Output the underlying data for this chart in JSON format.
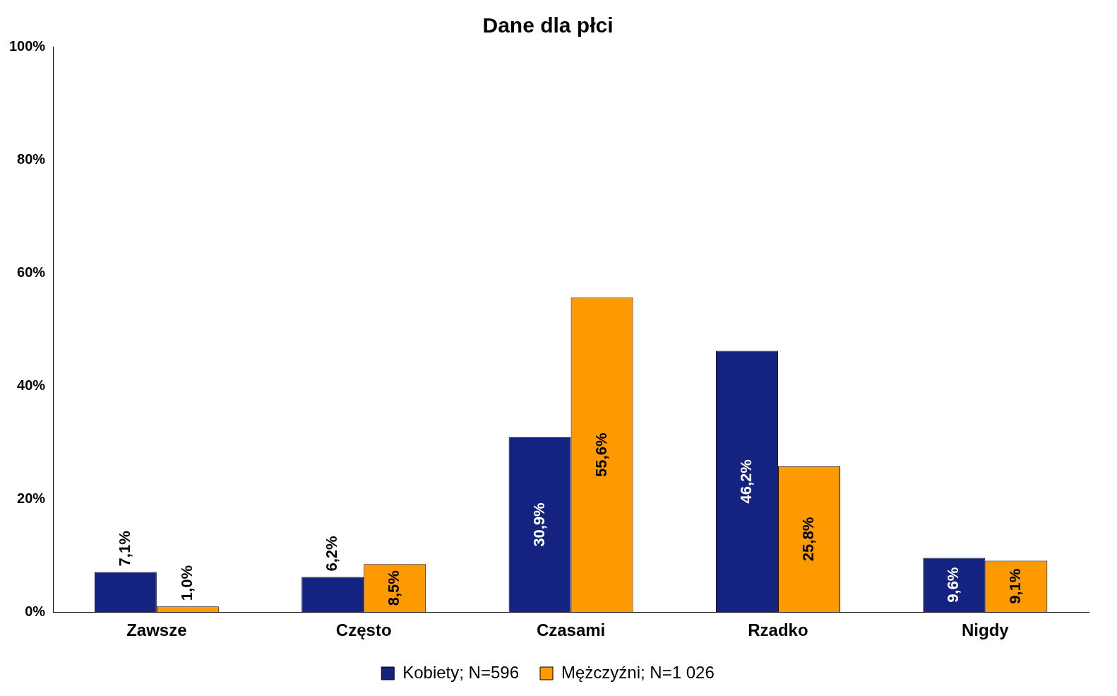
{
  "chart_data": {
    "type": "bar",
    "title": "Dane dla płci",
    "categories": [
      "Zawsze",
      "Często",
      "Czasami",
      "Rzadko",
      "Nigdy"
    ],
    "series": [
      {
        "name": "Kobiety; N=596",
        "color": "#14237f",
        "values": [
          7.1,
          6.2,
          30.9,
          46.2,
          9.6
        ],
        "value_labels": [
          "7,1%",
          "6,2%",
          "30,9%",
          "46,2%",
          "9,6%"
        ]
      },
      {
        "name": "Mężczyźni; N=1 026",
        "color": "#ff9900",
        "values": [
          1.0,
          8.5,
          55.6,
          25.8,
          9.1
        ],
        "value_labels": [
          "1,0%",
          "8,5%",
          "55,6%",
          "25,8%",
          "9,1%"
        ]
      }
    ],
    "ylim": [
      0,
      100
    ],
    "yticks": [
      {
        "value": 0,
        "label": "0%"
      },
      {
        "value": 20,
        "label": "20%"
      },
      {
        "value": 40,
        "label": "40%"
      },
      {
        "value": 60,
        "label": "60%"
      },
      {
        "value": 80,
        "label": "80%"
      },
      {
        "value": 100,
        "label": "100%"
      }
    ],
    "grid": false,
    "legend": "bottom"
  }
}
